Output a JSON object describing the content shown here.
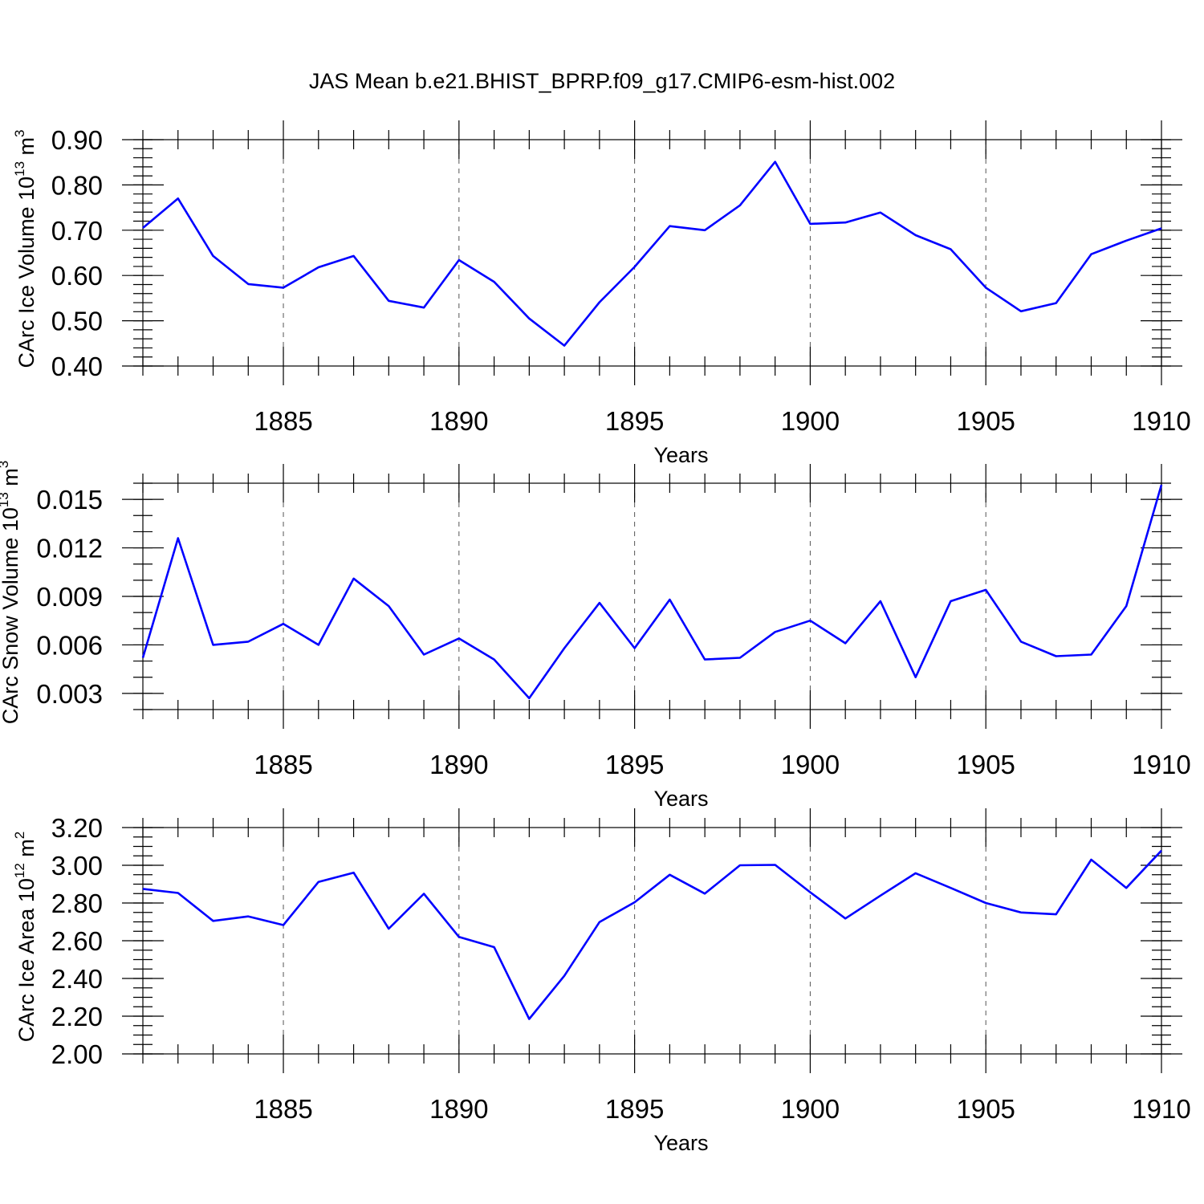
{
  "chart_data": [
    {
      "type": "line",
      "title": "JAS Mean b.e21.BHIST_BPRP.f09_g17.CMIP6-esm-hist.002",
      "xlabel": "Years",
      "ylabel": "CArc Ice Volume 10",
      "ylabel_exp": "13",
      "ylabel_unit": " m",
      "ylabel_unit_exp": "3",
      "xlim": [
        1881,
        1910
      ],
      "ylim": [
        0.4,
        0.9
      ],
      "xticks": [
        1885,
        1890,
        1895,
        1900,
        1905,
        1910
      ],
      "yticks": [
        0.4,
        0.5,
        0.6,
        0.7,
        0.8,
        0.9
      ],
      "ytick_labels": [
        "0.40",
        "0.50",
        "0.60",
        "0.70",
        "0.80",
        "0.90"
      ],
      "yminor": 0.02,
      "grid": "vertical dashed at major x ticks",
      "color": "#0000ff",
      "x": [
        1881,
        1882,
        1883,
        1884,
        1885,
        1886,
        1887,
        1888,
        1889,
        1890,
        1891,
        1892,
        1893,
        1894,
        1895,
        1896,
        1897,
        1898,
        1899,
        1900,
        1901,
        1902,
        1903,
        1904,
        1905,
        1906,
        1907,
        1908,
        1909,
        1910
      ],
      "values": [
        0.705,
        0.77,
        0.643,
        0.581,
        0.573,
        0.618,
        0.643,
        0.544,
        0.529,
        0.634,
        0.586,
        0.505,
        0.445,
        0.541,
        0.619,
        0.709,
        0.7,
        0.755,
        0.851,
        0.714,
        0.717,
        0.739,
        0.689,
        0.658,
        0.573,
        0.521,
        0.539,
        0.647,
        0.677,
        0.704
      ]
    },
    {
      "type": "line",
      "xlabel": "Years",
      "ylabel": "CArc Snow Volume 10",
      "ylabel_exp": "13",
      "ylabel_unit": " m",
      "ylabel_unit_exp": "3",
      "xlim": [
        1881,
        1910
      ],
      "ylim": [
        0.002,
        0.016
      ],
      "xticks": [
        1885,
        1890,
        1895,
        1900,
        1905,
        1910
      ],
      "yticks": [
        0.003,
        0.006,
        0.009,
        0.012,
        0.015
      ],
      "ytick_labels": [
        "0.003",
        "0.006",
        "0.009",
        "0.012",
        "0.015"
      ],
      "yminor": 0.001,
      "grid": "vertical dashed at major x ticks",
      "color": "#0000ff",
      "x": [
        1881,
        1882,
        1883,
        1884,
        1885,
        1886,
        1887,
        1888,
        1889,
        1890,
        1891,
        1892,
        1893,
        1894,
        1895,
        1896,
        1897,
        1898,
        1899,
        1900,
        1901,
        1902,
        1903,
        1904,
        1905,
        1906,
        1907,
        1908,
        1909,
        1910
      ],
      "values": [
        0.0052,
        0.0126,
        0.006,
        0.0062,
        0.0073,
        0.006,
        0.0101,
        0.0084,
        0.0054,
        0.0064,
        0.0051,
        0.0027,
        0.0058,
        0.0086,
        0.0058,
        0.0088,
        0.0051,
        0.0052,
        0.0068,
        0.0075,
        0.0061,
        0.0087,
        0.004,
        0.0087,
        0.0094,
        0.0062,
        0.0053,
        0.0054,
        0.0084,
        0.0159
      ]
    },
    {
      "type": "line",
      "xlabel": "Years",
      "ylabel": "CArc Ice Area 10",
      "ylabel_exp": "12",
      "ylabel_unit": " m",
      "ylabel_unit_exp": "2",
      "xlim": [
        1881,
        1910
      ],
      "ylim": [
        2.0,
        3.2
      ],
      "xticks": [
        1885,
        1890,
        1895,
        1900,
        1905,
        1910
      ],
      "yticks": [
        2.0,
        2.2,
        2.4,
        2.6,
        2.8,
        3.0,
        3.2
      ],
      "ytick_labels": [
        "2.00",
        "2.20",
        "2.40",
        "2.60",
        "2.80",
        "3.00",
        "3.20"
      ],
      "yminor": 0.05,
      "grid": "vertical dashed at major x ticks",
      "color": "#0000ff",
      "x": [
        1881,
        1882,
        1883,
        1884,
        1885,
        1886,
        1887,
        1888,
        1889,
        1890,
        1891,
        1892,
        1893,
        1894,
        1895,
        1896,
        1897,
        1898,
        1899,
        1900,
        1901,
        1902,
        1903,
        1904,
        1905,
        1906,
        1907,
        1908,
        1909,
        1910
      ],
      "values": [
        2.875,
        2.853,
        2.705,
        2.729,
        2.683,
        2.912,
        2.961,
        2.664,
        2.849,
        2.62,
        2.566,
        2.185,
        2.414,
        2.699,
        2.804,
        2.95,
        2.85,
        3.0,
        3.002,
        2.857,
        2.718,
        2.839,
        2.958,
        2.88,
        2.8,
        2.75,
        2.74,
        3.03,
        2.88,
        3.078
      ]
    }
  ]
}
